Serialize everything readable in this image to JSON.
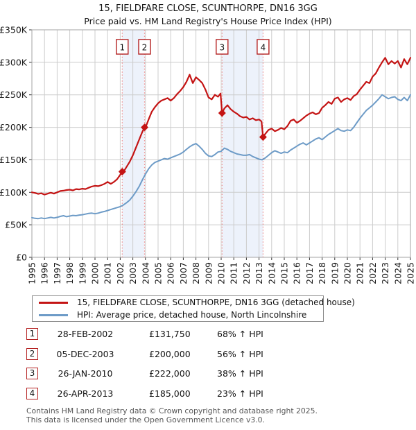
{
  "title": "15, FIELDFARE CLOSE, SCUNTHORPE, DN16 3GG",
  "subtitle": "Price paid vs. HM Land Registry's House Price Index (HPI)",
  "chart_data": {
    "type": "line",
    "title": "15, FIELDFARE CLOSE, SCUNTHORPE, DN16 3GG",
    "xlabel": "",
    "ylabel": "",
    "x_range": [
      1995,
      2025
    ],
    "ylim": [
      0,
      350000
    ],
    "y_tick_step_k": 50,
    "grid": true,
    "colors": {
      "grid": "#cccccc",
      "frame": "#a3a3a3",
      "band": "#edf2fb",
      "dashed_marker_line": "#ee8a8a",
      "marker_box_border": "#b42020",
      "tick_text": "#1a1a1a"
    },
    "series": [
      {
        "name": "15, FIELDFARE CLOSE, SCUNTHORPE, DN16 3GG (detached house)",
        "color": "#c41414",
        "points": [
          [
            1995,
            100
          ],
          [
            1995.25,
            99
          ],
          [
            1995.5,
            97.5
          ],
          [
            1995.75,
            98.5
          ],
          [
            1996,
            96.5
          ],
          [
            1996.25,
            98
          ],
          [
            1996.5,
            99.5
          ],
          [
            1996.75,
            98
          ],
          [
            1997,
            100
          ],
          [
            1997.25,
            102
          ],
          [
            1997.5,
            102.5
          ],
          [
            1997.75,
            103.5
          ],
          [
            1998,
            104
          ],
          [
            1998.25,
            103
          ],
          [
            1998.5,
            105
          ],
          [
            1998.75,
            104.5
          ],
          [
            1999,
            105.5
          ],
          [
            1999.25,
            105
          ],
          [
            1999.5,
            107
          ],
          [
            1999.75,
            109
          ],
          [
            2000,
            110
          ],
          [
            2000.25,
            109.5
          ],
          [
            2000.5,
            111
          ],
          [
            2000.75,
            113
          ],
          [
            2001,
            116
          ],
          [
            2001.25,
            113
          ],
          [
            2001.5,
            116
          ],
          [
            2001.75,
            120
          ],
          [
            2002,
            127
          ],
          [
            2002.16,
            131.75
          ],
          [
            2002.3,
            133
          ],
          [
            2002.5,
            139
          ],
          [
            2002.75,
            147
          ],
          [
            2003,
            157
          ],
          [
            2003.25,
            169
          ],
          [
            2003.5,
            181
          ],
          [
            2003.75,
            193
          ],
          [
            2003.93,
            200
          ],
          [
            2004.05,
            202
          ],
          [
            2004.25,
            212
          ],
          [
            2004.5,
            224
          ],
          [
            2004.75,
            231
          ],
          [
            2005,
            237
          ],
          [
            2005.25,
            241
          ],
          [
            2005.5,
            243
          ],
          [
            2005.75,
            245
          ],
          [
            2006,
            241
          ],
          [
            2006.25,
            245
          ],
          [
            2006.5,
            251
          ],
          [
            2006.75,
            256
          ],
          [
            2007,
            262
          ],
          [
            2007.25,
            270
          ],
          [
            2007.5,
            281
          ],
          [
            2007.75,
            268
          ],
          [
            2008,
            277
          ],
          [
            2008.25,
            273
          ],
          [
            2008.5,
            268
          ],
          [
            2008.75,
            258
          ],
          [
            2009,
            246
          ],
          [
            2009.25,
            243
          ],
          [
            2009.5,
            250
          ],
          [
            2009.75,
            247
          ],
          [
            2009.95,
            252
          ],
          [
            2010.07,
            222
          ],
          [
            2010.25,
            229
          ],
          [
            2010.5,
            234
          ],
          [
            2010.75,
            228
          ],
          [
            2011,
            224
          ],
          [
            2011.25,
            221
          ],
          [
            2011.5,
            217
          ],
          [
            2011.75,
            215
          ],
          [
            2012,
            216
          ],
          [
            2012.25,
            212
          ],
          [
            2012.5,
            214
          ],
          [
            2012.75,
            211
          ],
          [
            2013,
            212
          ],
          [
            2013.2,
            209
          ],
          [
            2013.32,
            185
          ],
          [
            2013.5,
            190
          ],
          [
            2013.75,
            196
          ],
          [
            2014,
            198
          ],
          [
            2014.25,
            194
          ],
          [
            2014.5,
            196
          ],
          [
            2014.75,
            199
          ],
          [
            2015,
            197
          ],
          [
            2015.25,
            202
          ],
          [
            2015.5,
            210
          ],
          [
            2015.75,
            212
          ],
          [
            2016,
            207
          ],
          [
            2016.25,
            210
          ],
          [
            2016.5,
            214
          ],
          [
            2016.75,
            218
          ],
          [
            2017,
            221
          ],
          [
            2017.25,
            223
          ],
          [
            2017.5,
            220
          ],
          [
            2017.75,
            222
          ],
          [
            2018,
            230
          ],
          [
            2018.25,
            234
          ],
          [
            2018.5,
            239
          ],
          [
            2018.75,
            236
          ],
          [
            2019,
            244
          ],
          [
            2019.25,
            246
          ],
          [
            2019.5,
            239
          ],
          [
            2019.75,
            243
          ],
          [
            2020,
            245
          ],
          [
            2020.25,
            242
          ],
          [
            2020.5,
            248
          ],
          [
            2020.75,
            251
          ],
          [
            2021,
            258
          ],
          [
            2021.25,
            264
          ],
          [
            2021.5,
            270
          ],
          [
            2021.75,
            268
          ],
          [
            2022,
            278
          ],
          [
            2022.25,
            283
          ],
          [
            2022.5,
            292
          ],
          [
            2022.75,
            300
          ],
          [
            2023,
            307
          ],
          [
            2023.25,
            297
          ],
          [
            2023.5,
            302
          ],
          [
            2023.75,
            298
          ],
          [
            2024,
            302
          ],
          [
            2024.25,
            292
          ],
          [
            2024.5,
            305
          ],
          [
            2024.75,
            297
          ],
          [
            2025,
            307
          ]
        ]
      },
      {
        "name": "HPI: Average price, detached house, North Lincolnshire",
        "color": "#6d9bc7",
        "points": [
          [
            1995,
            61
          ],
          [
            1995.25,
            60
          ],
          [
            1995.5,
            59.5
          ],
          [
            1995.75,
            60.5
          ],
          [
            1996,
            59.5
          ],
          [
            1996.25,
            60.5
          ],
          [
            1996.5,
            61.5
          ],
          [
            1996.75,
            60.5
          ],
          [
            1997,
            61.5
          ],
          [
            1997.25,
            63
          ],
          [
            1997.5,
            64
          ],
          [
            1997.75,
            62.5
          ],
          [
            1998,
            63.5
          ],
          [
            1998.25,
            64.5
          ],
          [
            1998.5,
            64
          ],
          [
            1998.75,
            65
          ],
          [
            1999,
            65.5
          ],
          [
            1999.25,
            66.5
          ],
          [
            1999.5,
            67.5
          ],
          [
            1999.75,
            68
          ],
          [
            2000,
            67
          ],
          [
            2000.25,
            68
          ],
          [
            2000.5,
            69.5
          ],
          [
            2000.75,
            70.5
          ],
          [
            2001,
            72
          ],
          [
            2001.25,
            73.5
          ],
          [
            2001.5,
            75
          ],
          [
            2001.75,
            76.5
          ],
          [
            2002,
            78
          ],
          [
            2002.25,
            80.5
          ],
          [
            2002.5,
            84
          ],
          [
            2002.75,
            88
          ],
          [
            2003,
            94
          ],
          [
            2003.25,
            101
          ],
          [
            2003.5,
            109
          ],
          [
            2003.75,
            119
          ],
          [
            2004,
            128
          ],
          [
            2004.25,
            136
          ],
          [
            2004.5,
            142
          ],
          [
            2004.75,
            146
          ],
          [
            2005,
            148
          ],
          [
            2005.25,
            150
          ],
          [
            2005.5,
            152
          ],
          [
            2005.75,
            151
          ],
          [
            2006,
            153
          ],
          [
            2006.25,
            155
          ],
          [
            2006.5,
            157
          ],
          [
            2006.75,
            159
          ],
          [
            2007,
            162
          ],
          [
            2007.25,
            166
          ],
          [
            2007.5,
            170
          ],
          [
            2007.75,
            173
          ],
          [
            2008,
            175
          ],
          [
            2008.25,
            171
          ],
          [
            2008.5,
            166
          ],
          [
            2008.75,
            160
          ],
          [
            2009,
            156
          ],
          [
            2009.25,
            155
          ],
          [
            2009.5,
            158
          ],
          [
            2009.75,
            162
          ],
          [
            2010,
            163
          ],
          [
            2010.25,
            168
          ],
          [
            2010.5,
            166
          ],
          [
            2010.75,
            163
          ],
          [
            2011,
            161
          ],
          [
            2011.25,
            159
          ],
          [
            2011.5,
            158
          ],
          [
            2011.75,
            157
          ],
          [
            2012,
            157
          ],
          [
            2012.25,
            158
          ],
          [
            2012.5,
            155
          ],
          [
            2012.75,
            153
          ],
          [
            2013,
            151
          ],
          [
            2013.25,
            150
          ],
          [
            2013.5,
            153
          ],
          [
            2013.75,
            157
          ],
          [
            2014,
            161
          ],
          [
            2014.25,
            164
          ],
          [
            2014.5,
            162
          ],
          [
            2014.75,
            160
          ],
          [
            2015,
            162
          ],
          [
            2015.25,
            161
          ],
          [
            2015.5,
            165
          ],
          [
            2015.75,
            168
          ],
          [
            2016,
            171
          ],
          [
            2016.25,
            174
          ],
          [
            2016.5,
            176
          ],
          [
            2016.75,
            173
          ],
          [
            2017,
            176
          ],
          [
            2017.25,
            179
          ],
          [
            2017.5,
            182
          ],
          [
            2017.75,
            184
          ],
          [
            2018,
            181
          ],
          [
            2018.25,
            185
          ],
          [
            2018.5,
            189
          ],
          [
            2018.75,
            192
          ],
          [
            2019,
            195
          ],
          [
            2019.25,
            198
          ],
          [
            2019.5,
            195
          ],
          [
            2019.75,
            194
          ],
          [
            2020,
            196
          ],
          [
            2020.25,
            195
          ],
          [
            2020.5,
            200
          ],
          [
            2020.75,
            207
          ],
          [
            2021,
            214
          ],
          [
            2021.25,
            220
          ],
          [
            2021.5,
            226
          ],
          [
            2021.75,
            230
          ],
          [
            2022,
            234
          ],
          [
            2022.25,
            239
          ],
          [
            2022.5,
            244
          ],
          [
            2022.75,
            250
          ],
          [
            2023,
            247
          ],
          [
            2023.25,
            244
          ],
          [
            2023.5,
            246
          ],
          [
            2023.75,
            247
          ],
          [
            2024,
            243
          ],
          [
            2024.25,
            241
          ],
          [
            2024.5,
            246
          ],
          [
            2024.75,
            241
          ],
          [
            2025,
            250
          ]
        ]
      }
    ],
    "markers": [
      {
        "n": "1",
        "year": 2002.16,
        "value_k": 131.75
      },
      {
        "n": "2",
        "year": 2003.93,
        "value_k": 200
      },
      {
        "n": "3",
        "year": 2010.07,
        "value_k": 222
      },
      {
        "n": "4",
        "year": 2013.32,
        "value_k": 185
      }
    ],
    "bands": [
      [
        2002.16,
        2003.93
      ],
      [
        2010.07,
        2013.32
      ]
    ],
    "legend_position": "below"
  },
  "legend": {
    "items": [
      {
        "label": "15, FIELDFARE CLOSE, SCUNTHORPE, DN16 3GG (detached house)"
      },
      {
        "label": "HPI: Average price, detached house, North Lincolnshire"
      }
    ]
  },
  "transactions": [
    {
      "n": "1",
      "date": "28-FEB-2002",
      "price": "£131,750",
      "hpi": "68% ↑ HPI"
    },
    {
      "n": "2",
      "date": "05-DEC-2003",
      "price": "£200,000",
      "hpi": "56% ↑ HPI"
    },
    {
      "n": "3",
      "date": "26-JAN-2010",
      "price": "£222,000",
      "hpi": "38% ↑ HPI"
    },
    {
      "n": "4",
      "date": "26-APR-2013",
      "price": "£185,000",
      "hpi": "23% ↑ HPI"
    }
  ],
  "footer": {
    "line1": "Contains HM Land Registry data © Crown copyright and database right 2025.",
    "line2": "This data is licensed under the Open Government Licence v3.0."
  }
}
